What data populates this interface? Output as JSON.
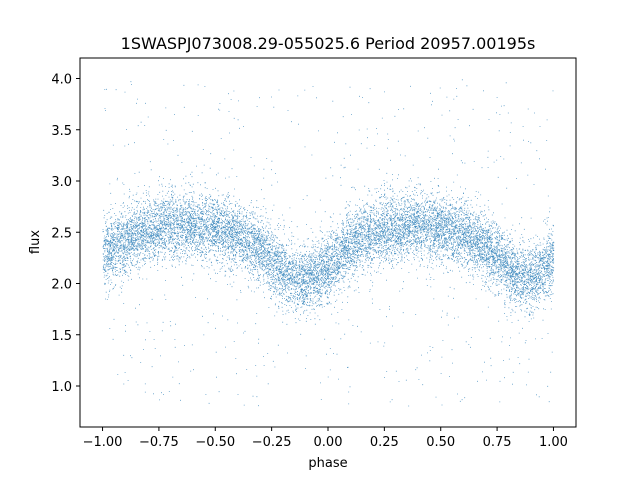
{
  "chart_data": {
    "type": "scatter",
    "title": "1SWASPJ073008.29-055025.6 Period 20957.00195s",
    "xlabel": "phase",
    "ylabel": "flux",
    "xlim": [
      -1.1,
      1.1
    ],
    "ylim": [
      0.6,
      4.2
    ],
    "xticks": [
      -1.0,
      -0.75,
      -0.5,
      -0.25,
      0.0,
      0.25,
      0.5,
      0.75,
      1.0
    ],
    "xtick_labels": [
      "−1.00",
      "−0.75",
      "−0.50",
      "−0.25",
      "0.00",
      "0.25",
      "0.50",
      "0.75",
      "1.00"
    ],
    "yticks": [
      1.0,
      1.5,
      2.0,
      2.5,
      3.0,
      3.5,
      4.0
    ],
    "ytick_labels": [
      "1.0",
      "1.5",
      "2.0",
      "2.5",
      "3.0",
      "3.5",
      "4.0"
    ],
    "grid": false,
    "marker_color": "#1f77b4",
    "series": [
      {
        "x": [
          -1.0,
          -0.9,
          -0.8,
          -0.7,
          -0.6,
          -0.5,
          -0.4,
          -0.3,
          -0.2,
          -0.15,
          -0.1,
          0.0,
          0.1,
          0.2,
          0.3,
          0.4,
          0.5,
          0.6,
          0.7,
          0.8,
          0.85,
          0.9,
          1.0
        ],
        "y": [
          2.28,
          2.42,
          2.52,
          2.57,
          2.57,
          2.54,
          2.46,
          2.32,
          2.12,
          2.05,
          2.03,
          2.15,
          2.38,
          2.5,
          2.55,
          2.57,
          2.54,
          2.47,
          2.35,
          2.16,
          2.07,
          2.04,
          2.24
        ],
        "scatter_sigma": 0.16,
        "outlier_range": [
          0.8,
          4.0
        ],
        "point_count": 14000
      }
    ]
  }
}
